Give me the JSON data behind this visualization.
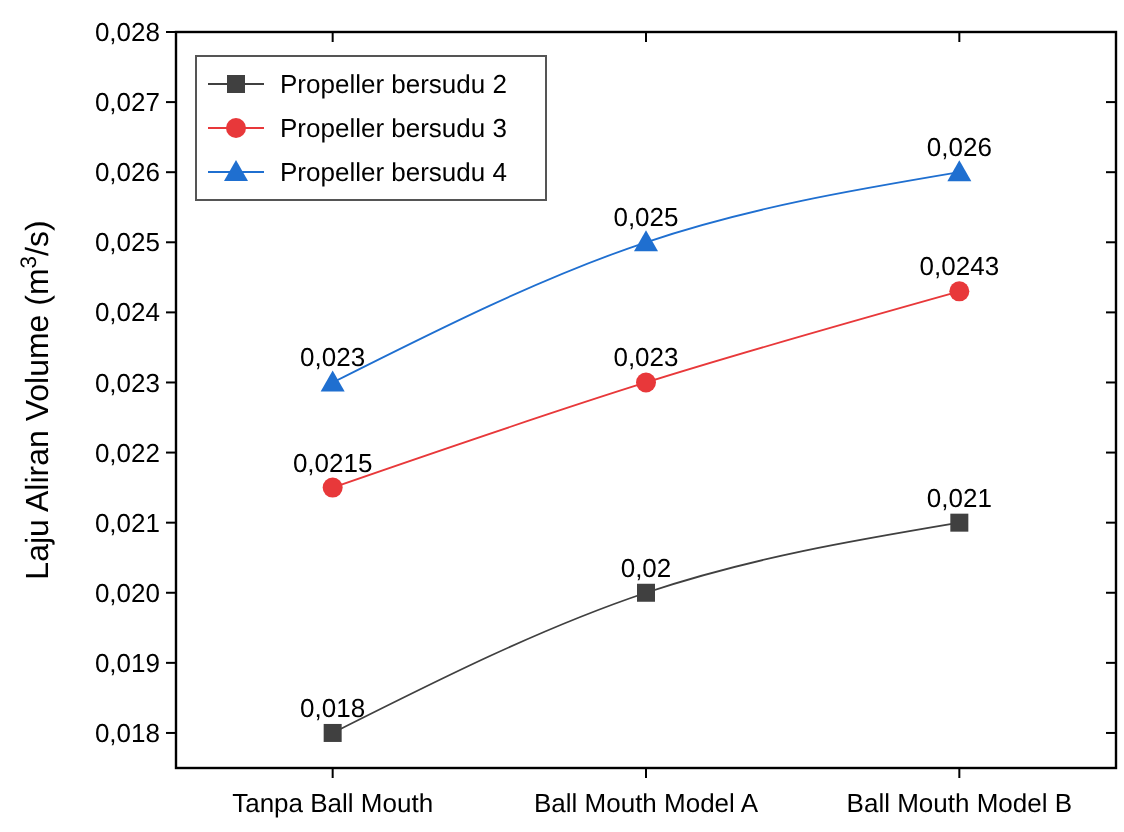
{
  "chart_data": {
    "type": "line",
    "ylabel": "Laju Aliran Volume (m$^{3}$/s)",
    "categories": [
      "Tanpa Ball Mouth",
      "Ball Mouth Model A",
      "Ball Mouth Model B"
    ],
    "series": [
      {
        "name": "Propeller bersudu 2",
        "color": "#404040",
        "marker": "square",
        "values": [
          0.018,
          0.02,
          0.021
        ],
        "value_labels": [
          "0,018",
          "0,02",
          "0,021"
        ]
      },
      {
        "name": "Propeller bersudu 3",
        "color": "#e8383a",
        "marker": "circle",
        "values": [
          0.0215,
          0.023,
          0.0243
        ],
        "value_labels": [
          "0,0215",
          "0,023",
          "0,0243"
        ]
      },
      {
        "name": "Propeller bersudu 4",
        "color": "#1f6fd0",
        "marker": "triangle",
        "values": [
          0.023,
          0.025,
          0.026
        ],
        "value_labels": [
          "0,023",
          "0,025",
          "0,026"
        ]
      }
    ],
    "ylim": [
      0.0175,
      0.028
    ],
    "yticks": [
      {
        "value": 0.018,
        "label": "0,018"
      },
      {
        "value": 0.019,
        "label": "0,019"
      },
      {
        "value": 0.02,
        "label": "0,020"
      },
      {
        "value": 0.021,
        "label": "0,021"
      },
      {
        "value": 0.022,
        "label": "0,022"
      },
      {
        "value": 0.023,
        "label": "0,023"
      },
      {
        "value": 0.024,
        "label": "0,024"
      },
      {
        "value": 0.025,
        "label": "0,025"
      },
      {
        "value": 0.026,
        "label": "0,026"
      },
      {
        "value": 0.027,
        "label": "0,027"
      },
      {
        "value": 0.028,
        "label": "0,028"
      }
    ],
    "grid": false,
    "legend": "top left"
  }
}
